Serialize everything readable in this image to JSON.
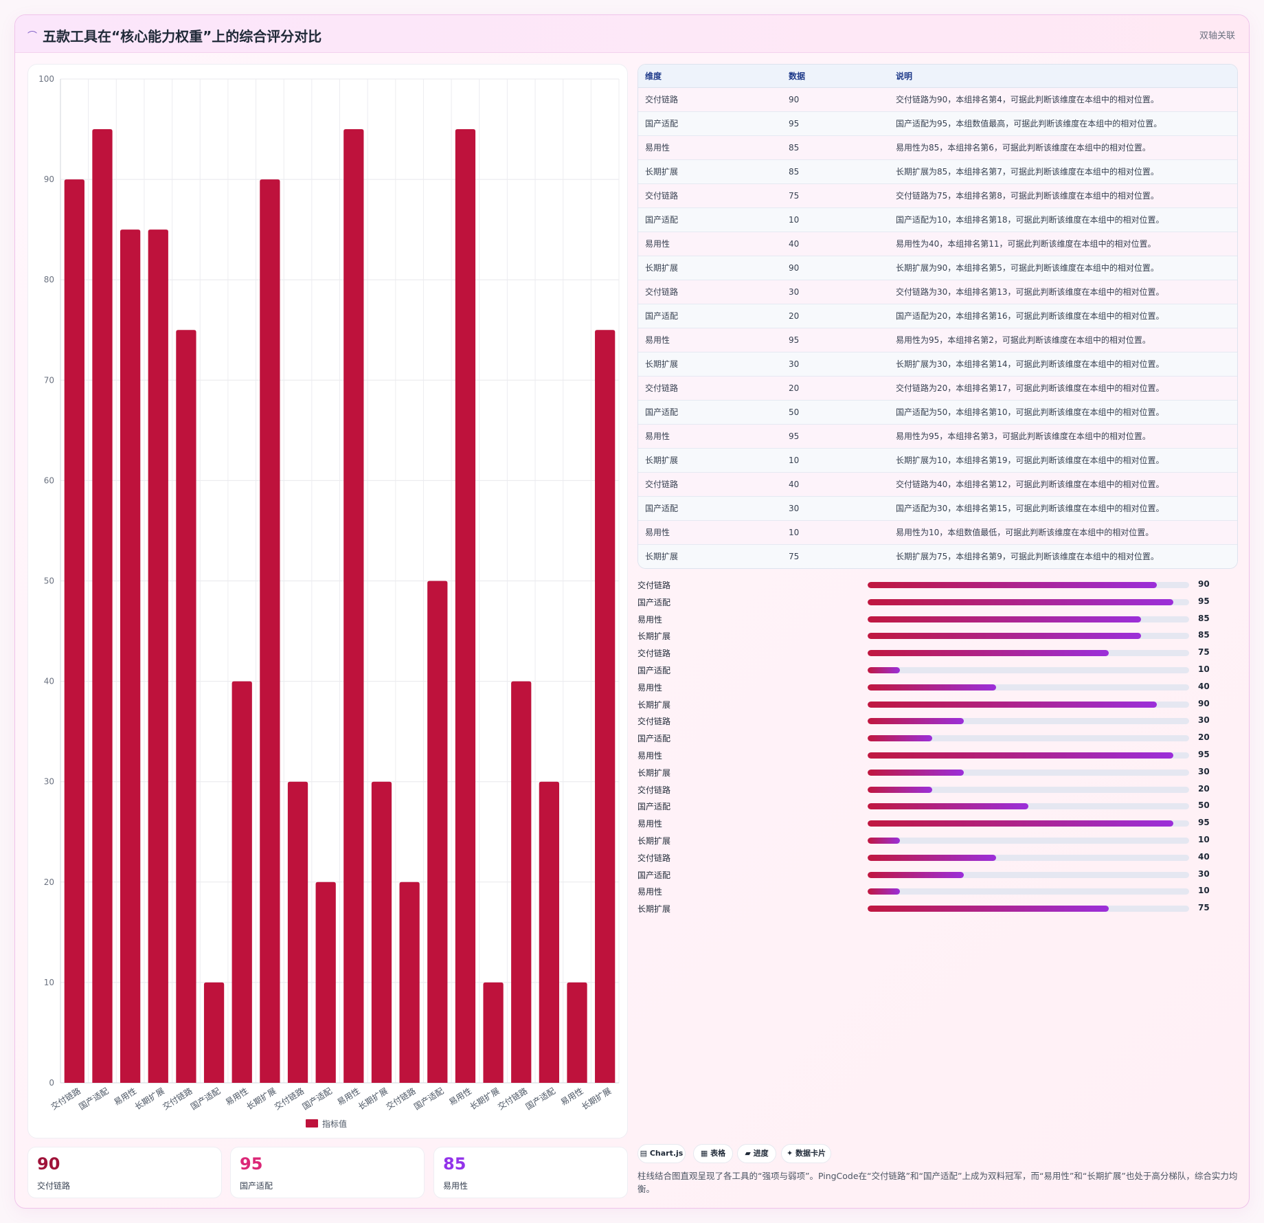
{
  "header": {
    "logo_glyph": "⌒",
    "title": "五款工具在“核心能力权重”上的综合评分对比",
    "tag": "双轴关联"
  },
  "chart_data": {
    "type": "bar",
    "categories": [
      "交付链路",
      "国产适配",
      "易用性",
      "长期扩展",
      "交付链路",
      "国产适配",
      "易用性",
      "长期扩展",
      "交付链路",
      "国产适配",
      "易用性",
      "长期扩展",
      "交付链路",
      "国产适配",
      "易用性",
      "长期扩展",
      "交付链路",
      "国产适配",
      "易用性",
      "长期扩展"
    ],
    "series": [
      {
        "name": "指标值",
        "values": [
          90,
          95,
          85,
          85,
          75,
          10,
          40,
          90,
          30,
          20,
          95,
          30,
          20,
          50,
          95,
          10,
          40,
          30,
          10,
          75
        ]
      }
    ],
    "ylim": [
      0,
      100
    ],
    "yticks": [
      0,
      10,
      20,
      30,
      40,
      50,
      60,
      70,
      80,
      90,
      100
    ],
    "legend": "bottom",
    "grid": true,
    "color": "#be123c"
  },
  "table": {
    "headers": [
      "维度",
      "数据",
      "说明"
    ],
    "rows": [
      [
        "交付链路",
        "90",
        "交付链路为90，本组排名第4，可据此判断该维度在本组中的相对位置。"
      ],
      [
        "国产适配",
        "95",
        "国产适配为95，本组数值最高，可据此判断该维度在本组中的相对位置。"
      ],
      [
        "易用性",
        "85",
        "易用性为85，本组排名第6，可据此判断该维度在本组中的相对位置。"
      ],
      [
        "长期扩展",
        "85",
        "长期扩展为85，本组排名第7，可据此判断该维度在本组中的相对位置。"
      ],
      [
        "交付链路",
        "75",
        "交付链路为75，本组排名第8，可据此判断该维度在本组中的相对位置。"
      ],
      [
        "国产适配",
        "10",
        "国产适配为10，本组排名第18，可据此判断该维度在本组中的相对位置。"
      ],
      [
        "易用性",
        "40",
        "易用性为40，本组排名第11，可据此判断该维度在本组中的相对位置。"
      ],
      [
        "长期扩展",
        "90",
        "长期扩展为90，本组排名第5，可据此判断该维度在本组中的相对位置。"
      ],
      [
        "交付链路",
        "30",
        "交付链路为30，本组排名第13，可据此判断该维度在本组中的相对位置。"
      ],
      [
        "国产适配",
        "20",
        "国产适配为20，本组排名第16，可据此判断该维度在本组中的相对位置。"
      ],
      [
        "易用性",
        "95",
        "易用性为95，本组排名第2，可据此判断该维度在本组中的相对位置。"
      ],
      [
        "长期扩展",
        "30",
        "长期扩展为30，本组排名第14，可据此判断该维度在本组中的相对位置。"
      ],
      [
        "交付链路",
        "20",
        "交付链路为20，本组排名第17，可据此判断该维度在本组中的相对位置。"
      ],
      [
        "国产适配",
        "50",
        "国产适配为50，本组排名第10，可据此判断该维度在本组中的相对位置。"
      ],
      [
        "易用性",
        "95",
        "易用性为95，本组排名第3，可据此判断该维度在本组中的相对位置。"
      ],
      [
        "长期扩展",
        "10",
        "长期扩展为10，本组排名第19，可据此判断该维度在本组中的相对位置。"
      ],
      [
        "交付链路",
        "40",
        "交付链路为40，本组排名第12，可据此判断该维度在本组中的相对位置。"
      ],
      [
        "国产适配",
        "30",
        "国产适配为30，本组排名第15，可据此判断该维度在本组中的相对位置。"
      ],
      [
        "易用性",
        "10",
        "易用性为10，本组数值最低，可据此判断该维度在本组中的相对位置。"
      ],
      [
        "长期扩展",
        "75",
        "长期扩展为75，本组排名第9，可据此判断该维度在本组中的相对位置。"
      ]
    ]
  },
  "progress": {
    "max": 100,
    "items": [
      {
        "label": "交付链路",
        "value": 90
      },
      {
        "label": "国产适配",
        "value": 95
      },
      {
        "label": "易用性",
        "value": 85
      },
      {
        "label": "长期扩展",
        "value": 85
      },
      {
        "label": "交付链路",
        "value": 75
      },
      {
        "label": "国产适配",
        "value": 10
      },
      {
        "label": "易用性",
        "value": 40
      },
      {
        "label": "长期扩展",
        "value": 90
      },
      {
        "label": "交付链路",
        "value": 30
      },
      {
        "label": "国产适配",
        "value": 20
      },
      {
        "label": "易用性",
        "value": 95
      },
      {
        "label": "长期扩展",
        "value": 30
      },
      {
        "label": "交付链路",
        "value": 20
      },
      {
        "label": "国产适配",
        "value": 50
      },
      {
        "label": "易用性",
        "value": 95
      },
      {
        "label": "长期扩展",
        "value": 10
      },
      {
        "label": "交付链路",
        "value": 40
      },
      {
        "label": "国产适配",
        "value": 30
      },
      {
        "label": "易用性",
        "value": 10
      },
      {
        "label": "长期扩展",
        "value": 75
      }
    ]
  },
  "kpis": [
    {
      "value": "90",
      "label": "交付链路",
      "color": "#9f1239"
    },
    {
      "value": "95",
      "label": "国产适配",
      "color": "#db2777"
    },
    {
      "value": "85",
      "label": "易用性",
      "color": "#9333ea"
    }
  ],
  "chips": [
    "▤ Chart.js",
    "▦ 表格",
    "▰ 进度",
    "✦ 数据卡片"
  ],
  "note": "柱线结合图直观呈现了各工具的“强项与弱项”。PingCode在“交付链路”和“国产适配”上成为双料冠军，而“易用性”和“长期扩展”也处于高分梯队，综合实力均衡。"
}
